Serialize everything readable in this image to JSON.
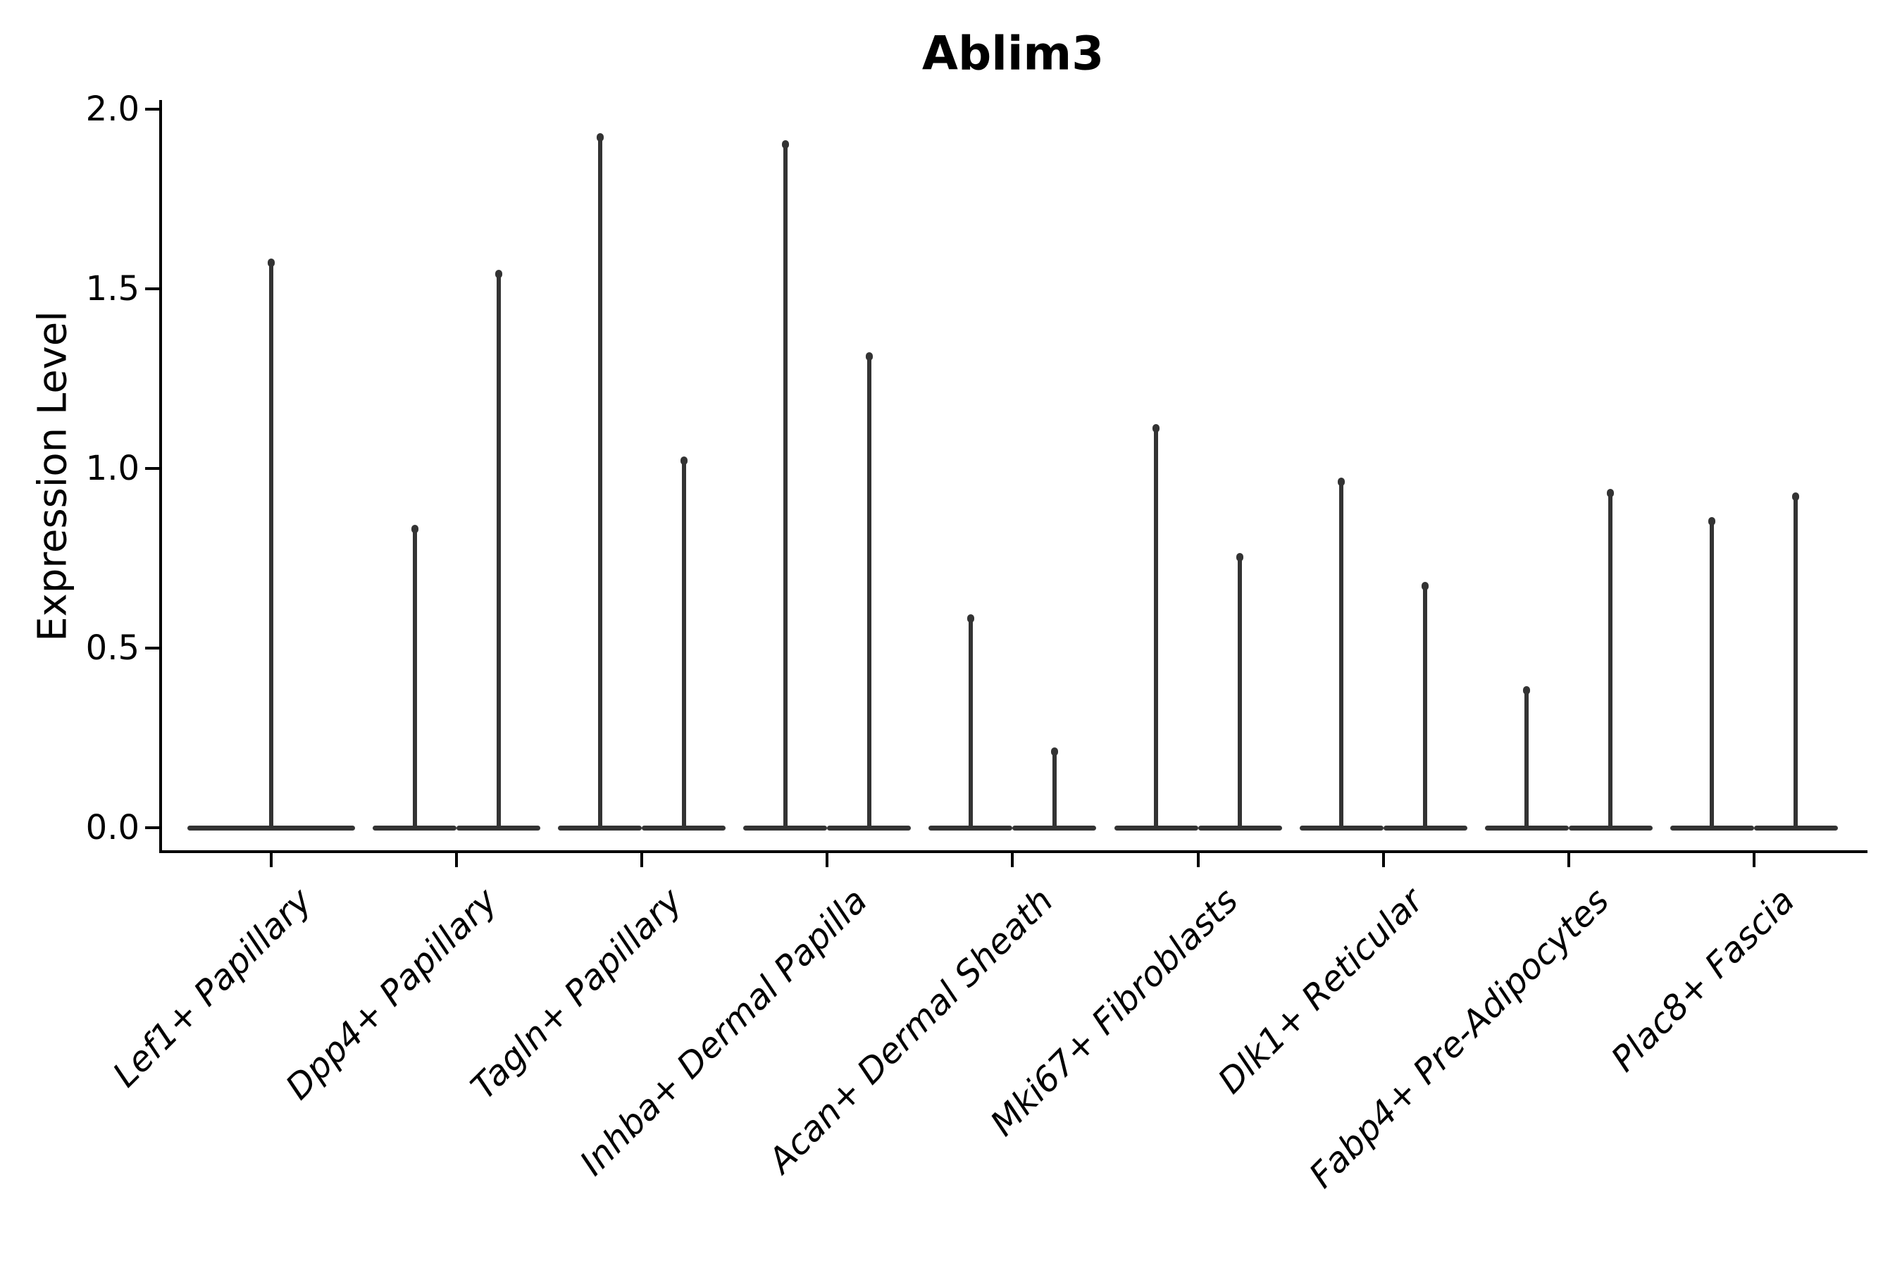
{
  "chart_data": {
    "type": "violin",
    "title": "Ablim3",
    "ylabel": "Expression Level",
    "xlabel": "",
    "ylim": [
      -0.07,
      2.03
    ],
    "yticks": [
      2.0,
      1.5,
      1.0,
      0.5,
      0.0
    ],
    "ytick_labels": [
      "2.0",
      "1.5",
      "1.0",
      "0.5",
      "0.0"
    ],
    "grid": false,
    "legend": "none",
    "style": "violins collapsed to zero baselines with thin vertical max-expression spikes; first category has a single centered violin, all others have two side-by-side (dodged) violins",
    "categories": [
      "Lef1+ Papillary",
      "Dpp4+ Papillary",
      "Tagln+ Papillary",
      "Inhba+ Dermal Papilla",
      "Acan+ Dermal Sheath",
      "Mki67+ Fibroblasts",
      "Dlk1+ Reticular",
      "Fabp4+ Pre-Adipocytes",
      "Plac8+ Fascia"
    ],
    "violins": [
      {
        "category": "Lef1+ Papillary",
        "max_expression_peaks": [
          1.58
        ]
      },
      {
        "category": "Dpp4+ Papillary",
        "max_expression_peaks": [
          0.84,
          1.55
        ]
      },
      {
        "category": "Tagln+ Papillary",
        "max_expression_peaks": [
          1.93,
          1.03
        ]
      },
      {
        "category": "Inhba+ Dermal Papilla",
        "max_expression_peaks": [
          1.91,
          1.32
        ]
      },
      {
        "category": "Acan+ Dermal Sheath",
        "max_expression_peaks": [
          0.59,
          0.22
        ]
      },
      {
        "category": "Mki67+ Fibroblasts",
        "max_expression_peaks": [
          1.12,
          0.76
        ]
      },
      {
        "category": "Dlk1+ Reticular",
        "max_expression_peaks": [
          0.97,
          0.68
        ]
      },
      {
        "category": "Fabp4+ Pre-Adipocytes",
        "max_expression_peaks": [
          0.39,
          0.94
        ]
      },
      {
        "category": "Plac8+ Fascia",
        "max_expression_peaks": [
          0.86,
          0.93
        ]
      }
    ],
    "colors": {
      "violin_line": "#333333",
      "axis": "#000000",
      "text": "#000000",
      "background": "#ffffff"
    }
  }
}
